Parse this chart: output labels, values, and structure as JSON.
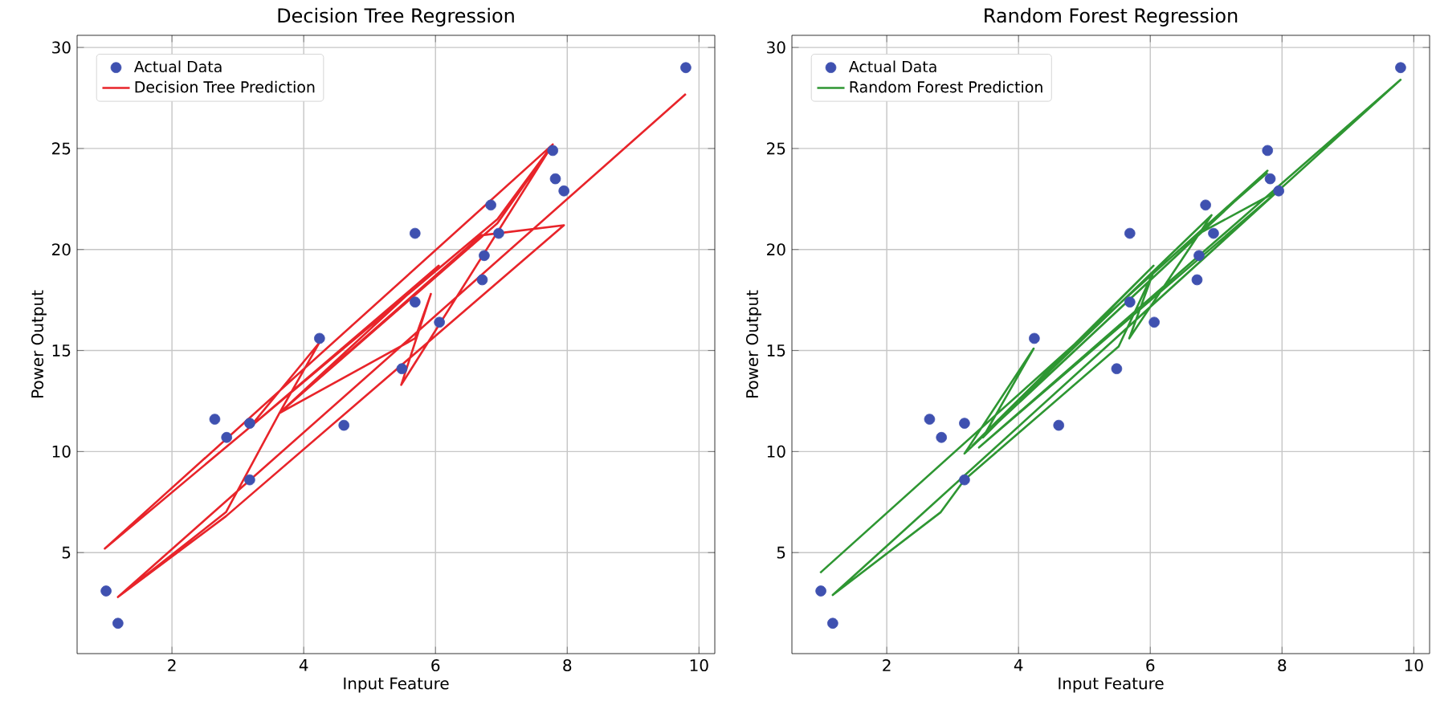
{
  "chart_data": [
    {
      "type": "scatter",
      "title": "Decision Tree Regression",
      "xlabel": "Input Feature",
      "ylabel": "Power Output",
      "xlim": [
        0.56,
        10.24
      ],
      "ylim": [
        0.0,
        30.6
      ],
      "xticks": [
        2,
        4,
        6,
        8,
        10
      ],
      "yticks": [
        5,
        10,
        15,
        20,
        25,
        30
      ],
      "grid": true,
      "legend": "top left",
      "series": [
        {
          "name": "Actual Data",
          "color": "#3f51b0",
          "marker": "circle",
          "x": [
            1.0,
            1.18,
            2.65,
            2.83,
            3.18,
            3.18,
            4.24,
            4.61,
            5.49,
            5.69,
            5.69,
            6.06,
            6.71,
            6.74,
            6.84,
            6.96,
            7.78,
            7.82,
            7.95,
            9.8
          ],
          "values": [
            3.1,
            1.5,
            11.6,
            10.7,
            11.4,
            8.6,
            15.6,
            11.3,
            14.1,
            17.4,
            20.8,
            16.4,
            18.5,
            19.7,
            22.2,
            20.8,
            24.9,
            23.5,
            22.9,
            29.0
          ]
        },
        {
          "name": "Decision Tree Prediction",
          "type": "line",
          "color": "#e8242a",
          "marker": "none",
          "x": [
            9.8,
            1.18,
            2.82,
            3.63,
            4.24,
            3.18,
            0.98,
            7.78,
            6.94,
            3.18,
            6.05,
            3.63,
            5.69,
            5.93,
            5.48,
            7.78,
            6.94,
            3.63,
            6.69,
            7.95,
            2.82,
            1.18
          ],
          "values": [
            27.7,
            2.8,
            7.0,
            11.9,
            15.4,
            11.2,
            5.2,
            25.2,
            21.5,
            11.2,
            19.2,
            11.9,
            15.6,
            17.8,
            13.3,
            25.2,
            21.3,
            11.9,
            20.7,
            21.2,
            6.8,
            2.8
          ]
        }
      ]
    },
    {
      "type": "scatter",
      "title": "Random Forest Regression",
      "xlabel": "Input Feature",
      "ylabel": "Power Output",
      "xlim": [
        0.56,
        10.24
      ],
      "ylim": [
        0.0,
        30.6
      ],
      "xticks": [
        2,
        4,
        6,
        8,
        10
      ],
      "yticks": [
        5,
        10,
        15,
        20,
        25,
        30
      ],
      "grid": true,
      "legend": "top left",
      "series": [
        {
          "name": "Actual Data",
          "color": "#3f51b0",
          "marker": "circle",
          "x": [
            1.0,
            1.18,
            2.65,
            2.83,
            3.18,
            3.18,
            4.24,
            4.61,
            5.49,
            5.69,
            5.69,
            6.06,
            6.71,
            6.74,
            6.84,
            6.96,
            7.78,
            7.82,
            7.95,
            9.8
          ],
          "values": [
            3.1,
            1.5,
            11.6,
            10.7,
            11.4,
            8.6,
            15.6,
            11.3,
            14.1,
            17.4,
            20.8,
            16.4,
            18.5,
            19.7,
            22.2,
            20.8,
            24.9,
            23.5,
            22.9,
            29.0
          ]
        },
        {
          "name": "Random Forest Prediction",
          "type": "line",
          "color": "#2e9632",
          "marker": "none",
          "x": [
            0.99,
            7.78,
            3.18,
            4.23,
            3.46,
            6.05,
            3.3,
            6.93,
            5.68,
            6.05,
            5.52,
            3.18,
            2.82,
            1.18,
            9.8,
            3.4,
            7.94,
            6.69,
            7.78
          ],
          "values": [
            4.0,
            23.9,
            9.9,
            15.1,
            10.7,
            19.2,
            10.3,
            21.7,
            15.6,
            18.9,
            15.2,
            8.6,
            7.0,
            2.9,
            28.4,
            10.2,
            22.9,
            20.7,
            23.8
          ]
        }
      ]
    }
  ]
}
